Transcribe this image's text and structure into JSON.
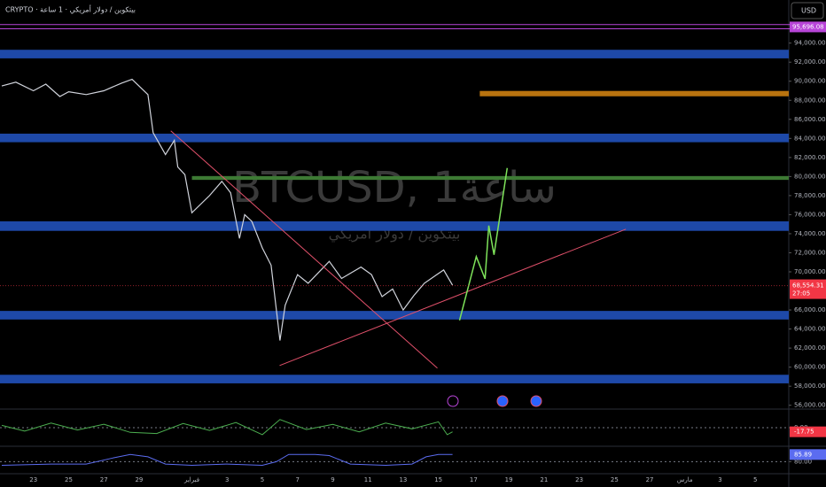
{
  "header": {
    "symbol_line": "CRYPTO · بيتكوين / دولار أمريكي · 1 ساعة",
    "currency": "USD"
  },
  "chart_data": [
    {
      "type": "line",
      "watermark": "BTCUSD, 1ساعة",
      "watermark_subtitle": "بيتكوين / دولار أمريكي",
      "color": "#d1d4dc",
      "x": [
        -1.8,
        -1,
        0,
        0.7,
        1.5,
        2,
        3,
        4,
        5,
        5.6,
        6.5,
        6.8,
        7.5,
        8,
        8.2,
        8.6,
        9,
        10,
        10.7,
        11.2,
        11.7,
        12,
        12.4,
        13,
        13.5,
        14,
        14.3,
        15,
        15.6,
        16.8,
        17.5,
        18.6,
        19.2,
        19.8,
        20.4,
        21,
        21.6,
        22.2,
        22.9,
        23.3,
        23.8
      ],
      "values": [
        89500,
        89900,
        89000,
        89700,
        88400,
        88900,
        88600,
        89000,
        89800,
        90200,
        88600,
        84600,
        82300,
        83800,
        81000,
        80200,
        76200,
        78000,
        79500,
        78300,
        73500,
        76000,
        75300,
        72500,
        70700,
        62800,
        66500,
        69700,
        68800,
        71100,
        69300,
        70500,
        69700,
        67400,
        68200,
        66000,
        67500,
        68800,
        69700,
        70200,
        68600
      ],
      "xlim": [
        -1.9,
        42.9
      ],
      "ylim": [
        55600,
        96200
      ],
      "yticks": [
        {
          "value": 56000,
          "label": "56,000.00"
        },
        {
          "value": 58000,
          "label": "58,000.00"
        },
        {
          "value": 60000,
          "label": "60,000.00"
        },
        {
          "value": 62000,
          "label": "62,000.00"
        },
        {
          "value": 64000,
          "label": "64,000.00"
        },
        {
          "value": 66000,
          "label": "66,000.00"
        },
        {
          "value": 70000,
          "label": "70,000.00"
        },
        {
          "value": 72000,
          "label": "72,000.00"
        },
        {
          "value": 74000,
          "label": "74,000.00"
        },
        {
          "value": 76000,
          "label": "76,000.00"
        },
        {
          "value": 78000,
          "label": "78,000.00"
        },
        {
          "value": 80000,
          "label": "80,000.00"
        },
        {
          "value": 82000,
          "label": "82,000.00"
        },
        {
          "value": 84000,
          "label": "84,000.00"
        },
        {
          "value": 86000,
          "label": "86,000.00"
        },
        {
          "value": 88000,
          "label": "88,000.00"
        },
        {
          "value": 90000,
          "label": "90,000.00"
        },
        {
          "value": 92000,
          "label": "92,000.00"
        },
        {
          "value": 94000,
          "label": "94,000.00"
        }
      ],
      "xticks": [
        {
          "value": 0,
          "label": "23"
        },
        {
          "value": 2,
          "label": "25"
        },
        {
          "value": 4,
          "label": "27"
        },
        {
          "value": 6,
          "label": "29"
        },
        {
          "value": 9,
          "label": "فبراير"
        },
        {
          "value": 11,
          "label": "3"
        },
        {
          "value": 13,
          "label": "5"
        },
        {
          "value": 15,
          "label": "7"
        },
        {
          "value": 17,
          "label": "9"
        },
        {
          "value": 19,
          "label": "11"
        },
        {
          "value": 21,
          "label": "13"
        },
        {
          "value": 23,
          "label": "15"
        },
        {
          "value": 25,
          "label": "17"
        },
        {
          "value": 27,
          "label": "19"
        },
        {
          "value": 29,
          "label": "21"
        },
        {
          "value": 31,
          "label": "23"
        },
        {
          "value": 33,
          "label": "25"
        },
        {
          "value": 35,
          "label": "27"
        },
        {
          "value": 37,
          "label": "مارس"
        },
        {
          "value": 39,
          "label": "3"
        },
        {
          "value": 41,
          "label": "5"
        }
      ],
      "last_price": {
        "value": 68554.31,
        "label": "68,554.31"
      },
      "countdown": "27:05",
      "marker_price": {
        "value": 95696.08,
        "label": "95,696.08"
      },
      "levels": [
        {
          "value": 95950,
          "color": "#b845d8"
        },
        {
          "value": 95500,
          "color": "#b845d8"
        }
      ],
      "zones": [
        {
          "from": 92400,
          "to": 93300,
          "x_from": -1.9,
          "color": "#1e49a8"
        },
        {
          "from": 83600,
          "to": 84500,
          "x_from": -1.9,
          "color": "#1e49a8"
        },
        {
          "from": 74300,
          "to": 75300,
          "x_from": -1.9,
          "color": "#1e49a8"
        },
        {
          "from": 65000,
          "to": 65900,
          "x_from": -1.9,
          "color": "#1e49a8"
        },
        {
          "from": 58300,
          "to": 59200,
          "x_from": -1.9,
          "color": "#1e49a8"
        },
        {
          "from": 88420,
          "to": 88980,
          "x_from": 25.35,
          "color": "#b8730f"
        },
        {
          "from": 79650,
          "to": 80050,
          "x_from": 9,
          "color": "#3d7a34"
        }
      ],
      "trendlines": [
        {
          "x": [
            7.8,
            22.94
          ],
          "values": [
            84800,
            59890
          ],
          "color": "#e0506a"
        },
        {
          "x": [
            13.98,
            33.65
          ],
          "values": [
            60170,
            74480
          ],
          "color": "#e0506a"
        }
      ],
      "projection": {
        "x": [
          24.2,
          25.15,
          25.65,
          25.86,
          26.16,
          26.91
        ],
        "values": [
          64910,
          71600,
          69270,
          74850,
          71790,
          80900
        ],
        "color": "#7ee35a"
      }
    },
    {
      "type": "line",
      "color": "#4caf50",
      "x": [
        -1.8,
        -0.5,
        1,
        2.5,
        4,
        5.5,
        7,
        8.5,
        10,
        11.5,
        13,
        14,
        15.5,
        17,
        18.5,
        20,
        21.5,
        23,
        23.5,
        23.8
      ],
      "values": [
        10,
        -15,
        20,
        -10,
        15,
        -20,
        -25,
        18,
        -12,
        22,
        -30,
        35,
        -8,
        14,
        -18,
        20,
        -5,
        25,
        -30,
        -17.75
      ],
      "xlim": [
        -1.9,
        42.9
      ],
      "ylim": [
        -80,
        80
      ],
      "yticks": [
        {
          "value": 0,
          "label": "0.00"
        }
      ],
      "last_value": {
        "value": -17.75,
        "label": "-17.75"
      }
    },
    {
      "type": "line",
      "color": "#5b6cf0",
      "x": [
        -1.8,
        1,
        3,
        4.5,
        5.5,
        6.5,
        7.5,
        9,
        11,
        13,
        13.8,
        14.5,
        16,
        16.8,
        18,
        20,
        21.5,
        22.3,
        23,
        23.8
      ],
      "values": [
        77,
        78,
        78,
        83,
        86,
        84,
        78,
        77,
        78,
        77,
        80,
        86,
        86,
        85,
        78,
        77,
        78,
        84,
        86,
        85.89
      ],
      "xlim": [
        -1.9,
        42.9
      ],
      "ylim": [
        70,
        92
      ],
      "yticks": [
        {
          "value": 80,
          "label": "80.00"
        }
      ],
      "last_value": {
        "value": 85.89,
        "label": "85.89"
      }
    }
  ]
}
